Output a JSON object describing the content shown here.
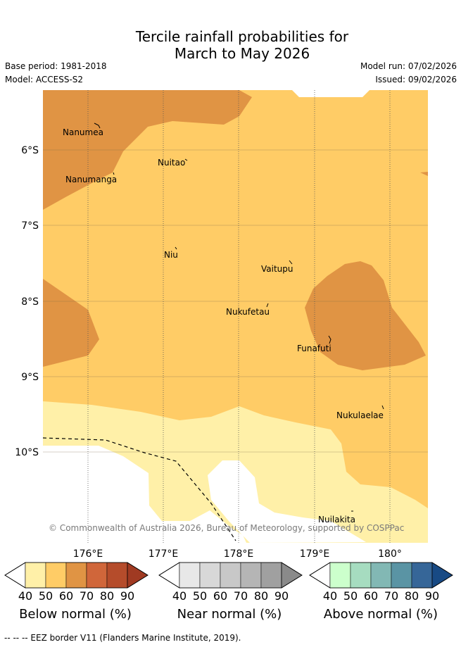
{
  "header": {
    "title_line1": "Tercile rainfall probabilities for",
    "title_line2": "March to May 2026",
    "base_period": "Base period: 1981-2018",
    "model": "Model: ACCESS-S2",
    "model_run": "Model run: 07/02/2026",
    "issued": "Issued: 09/02/2026"
  },
  "map": {
    "lat_labels": [
      "6°S",
      "7°S",
      "8°S",
      "9°S",
      "10°S"
    ],
    "lon_labels": [
      "176°E",
      "177°E",
      "178°E",
      "179°E",
      "180°"
    ],
    "islands": [
      "Nanumea",
      "Nuitao",
      "Nanumanga",
      "Niu",
      "Vaitupu",
      "Nukufetau",
      "Funafuti",
      "Nukulaelae",
      "Nuilakita"
    ],
    "copyright": "© Commonwealth of Australia 2026, Bureau of Meteorology, supported by COSPPac"
  },
  "colorbars": [
    {
      "title": "Below normal (%)",
      "ticks": [
        "40",
        "50",
        "60",
        "70",
        "80",
        "90"
      ],
      "colors": [
        "#fff0a8",
        "#ffcc66",
        "#e09444",
        "#d0663a",
        "#b54c2b",
        "#a03a22"
      ]
    },
    {
      "title": "Near normal (%)",
      "ticks": [
        "40",
        "50",
        "60",
        "70",
        "80",
        "90"
      ],
      "colors": [
        "#e8e8e8",
        "#d8d8d8",
        "#c8c8c8",
        "#b5b5b5",
        "#a0a0a0",
        "#8a8a8a"
      ]
    },
    {
      "title": "Above normal (%)",
      "ticks": [
        "40",
        "50",
        "60",
        "70",
        "80",
        "90"
      ],
      "colors": [
        "#ccffcc",
        "#a6dcc0",
        "#82b8b4",
        "#5a94a4",
        "#366698",
        "#184a84"
      ]
    }
  ],
  "footer": {
    "eez": "--  --  -- EEZ border V11 (Flanders Marine Institute, 2019)."
  }
}
